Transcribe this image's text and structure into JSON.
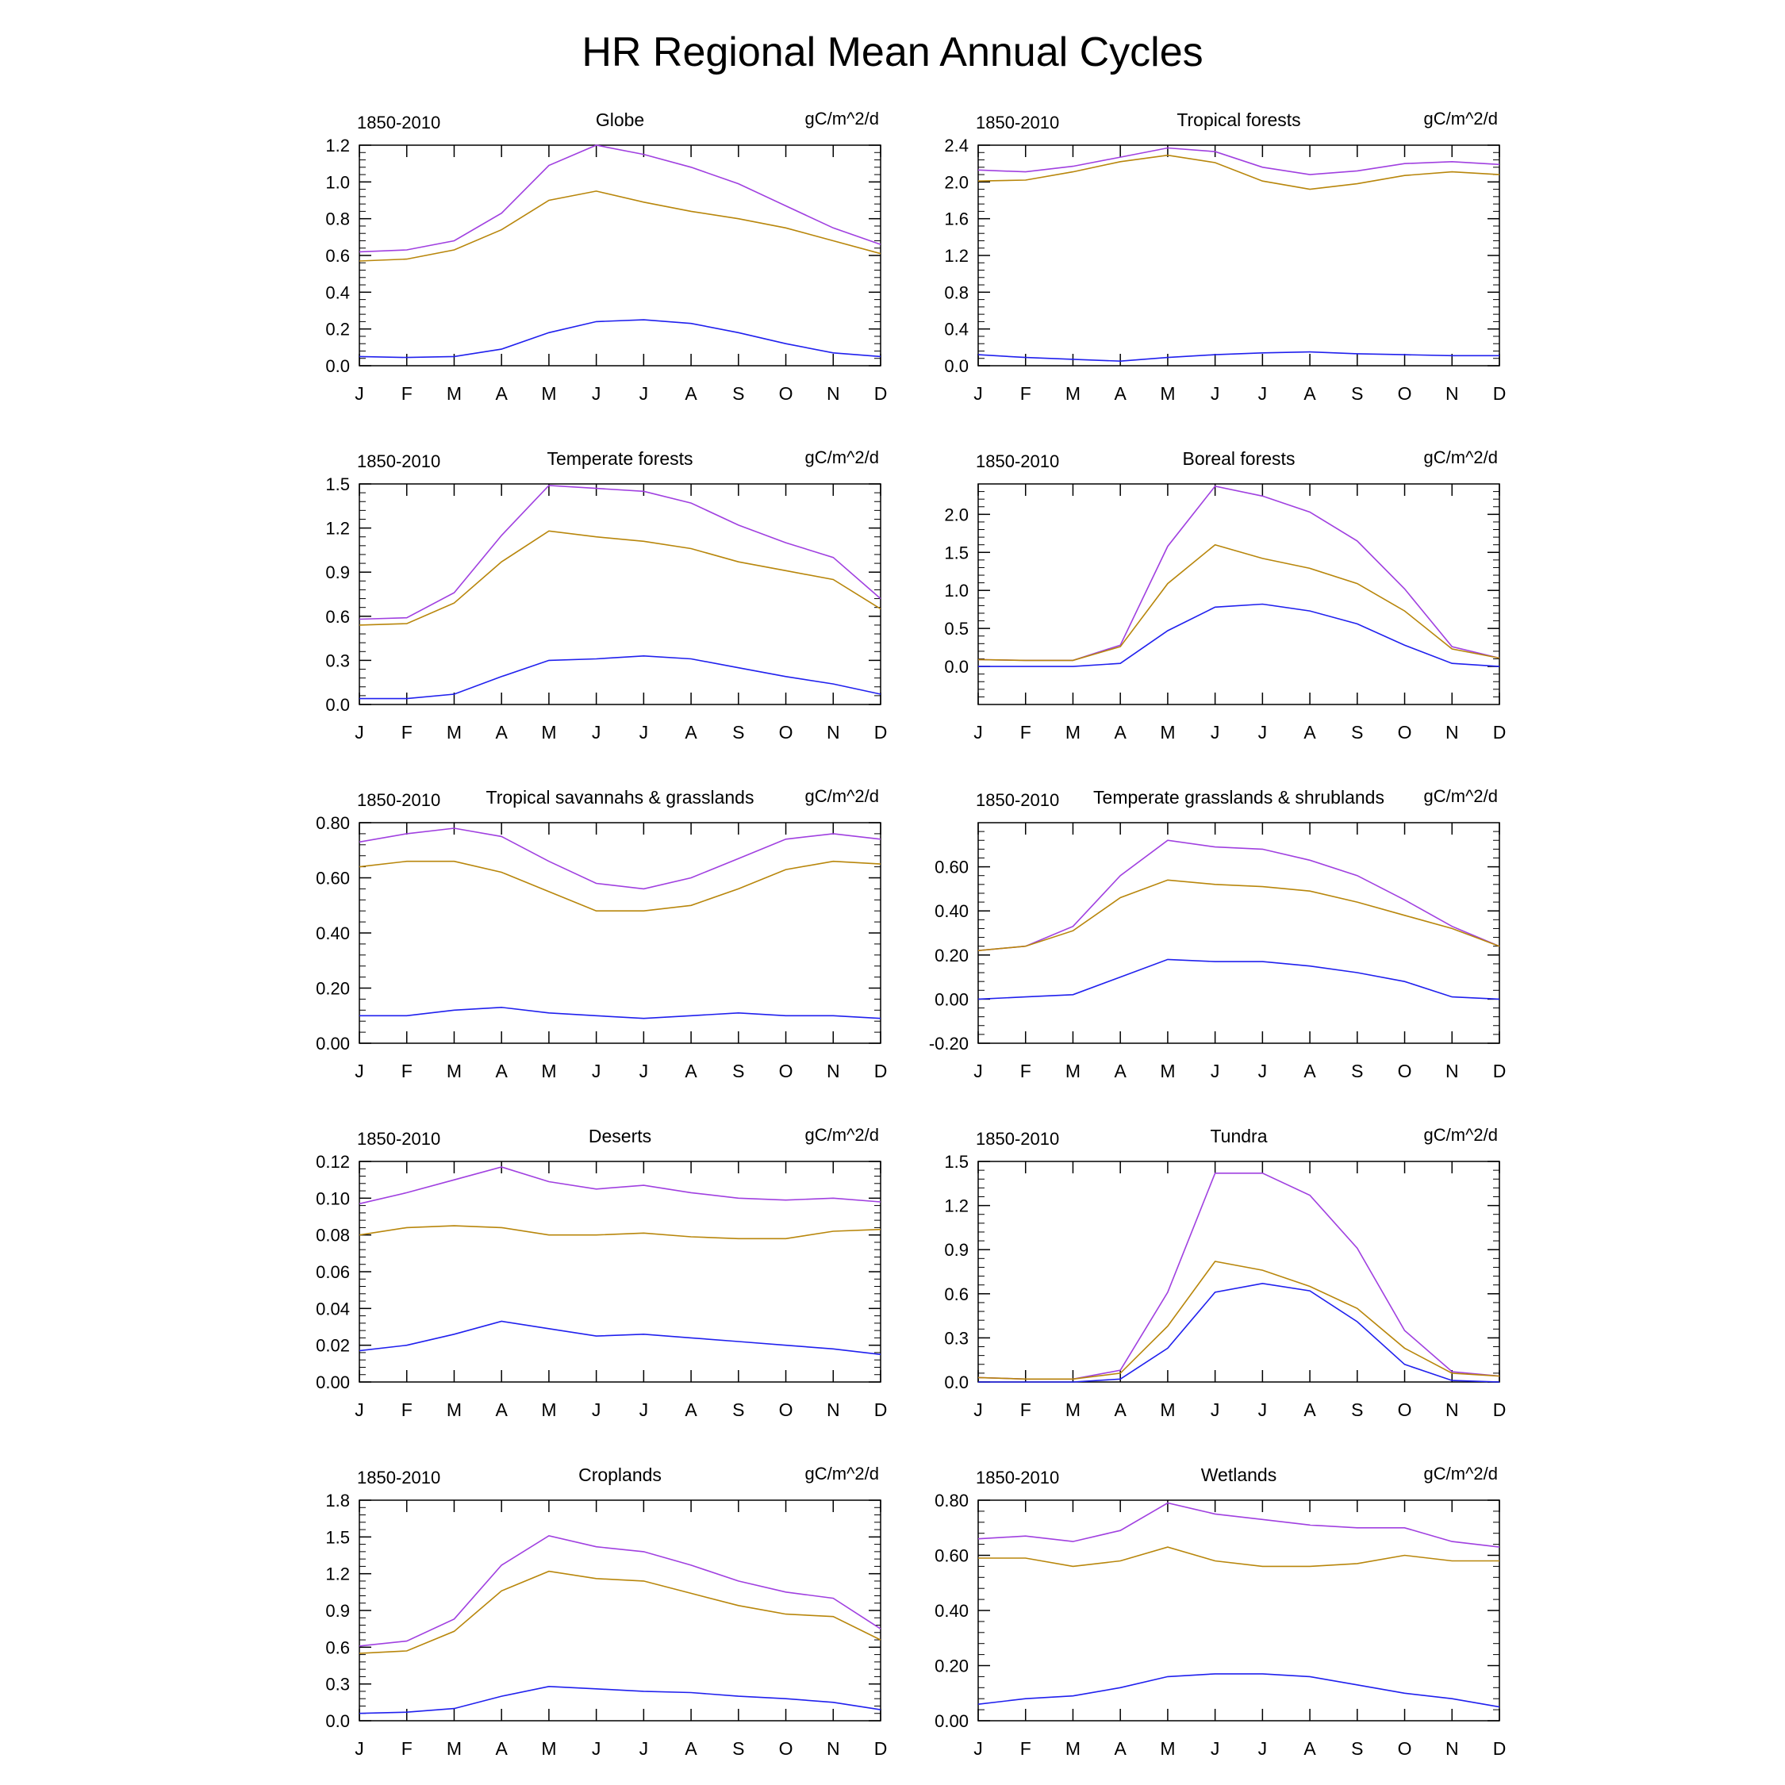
{
  "figure": {
    "title": "HR Regional Mean Annual Cycles",
    "period_label": "1850-2010",
    "units_label": "gC/m^2/d"
  },
  "colors": {
    "series_purple": "#a040e0",
    "series_gold": "#b8860b",
    "series_blue": "#2020ee"
  },
  "chart_data": [
    {
      "type": "line",
      "title": "Globe",
      "categories": [
        "J",
        "F",
        "M",
        "A",
        "M",
        "J",
        "J",
        "A",
        "S",
        "O",
        "N",
        "D"
      ],
      "ylim": [
        0.0,
        1.2
      ],
      "yticks": [
        "0.0",
        "0.2",
        "0.4",
        "0.6",
        "0.8",
        "1.0",
        "1.2"
      ],
      "ytick_values": [
        0.0,
        0.2,
        0.4,
        0.6,
        0.8,
        1.0,
        1.2
      ],
      "minor_step": 0.04,
      "series": [
        {
          "color": "series_purple",
          "values": [
            0.62,
            0.63,
            0.68,
            0.83,
            1.09,
            1.2,
            1.15,
            1.08,
            0.99,
            0.87,
            0.75,
            0.66
          ]
        },
        {
          "color": "series_gold",
          "values": [
            0.57,
            0.58,
            0.63,
            0.74,
            0.9,
            0.95,
            0.89,
            0.84,
            0.8,
            0.75,
            0.68,
            0.61
          ]
        },
        {
          "color": "series_blue",
          "values": [
            0.05,
            0.045,
            0.05,
            0.09,
            0.18,
            0.24,
            0.25,
            0.23,
            0.18,
            0.12,
            0.07,
            0.05
          ]
        }
      ]
    },
    {
      "type": "line",
      "title": "Tropical forests",
      "categories": [
        "J",
        "F",
        "M",
        "A",
        "M",
        "J",
        "J",
        "A",
        "S",
        "O",
        "N",
        "D"
      ],
      "ylim": [
        0.0,
        2.4
      ],
      "yticks": [
        "0.0",
        "0.4",
        "0.8",
        "1.2",
        "1.6",
        "2.0",
        "2.4"
      ],
      "ytick_values": [
        0.0,
        0.4,
        0.8,
        1.2,
        1.6,
        2.0,
        2.4
      ],
      "minor_step": 0.08,
      "series": [
        {
          "color": "series_purple",
          "values": [
            2.13,
            2.11,
            2.17,
            2.27,
            2.37,
            2.33,
            2.16,
            2.08,
            2.12,
            2.2,
            2.22,
            2.19
          ]
        },
        {
          "color": "series_gold",
          "values": [
            2.01,
            2.02,
            2.11,
            2.22,
            2.29,
            2.21,
            2.01,
            1.92,
            1.98,
            2.07,
            2.11,
            2.08
          ]
        },
        {
          "color": "series_blue",
          "values": [
            0.12,
            0.09,
            0.07,
            0.05,
            0.09,
            0.12,
            0.14,
            0.15,
            0.13,
            0.12,
            0.11,
            0.11
          ]
        }
      ]
    },
    {
      "type": "line",
      "title": "Temperate forests",
      "categories": [
        "J",
        "F",
        "M",
        "A",
        "M",
        "J",
        "J",
        "A",
        "S",
        "O",
        "N",
        "D"
      ],
      "ylim": [
        0.0,
        1.5
      ],
      "yticks": [
        "0.0",
        "0.3",
        "0.6",
        "0.9",
        "1.2",
        "1.5"
      ],
      "ytick_values": [
        0.0,
        0.3,
        0.6,
        0.9,
        1.2,
        1.5
      ],
      "minor_step": 0.06,
      "series": [
        {
          "color": "series_purple",
          "values": [
            0.58,
            0.59,
            0.76,
            1.15,
            1.49,
            1.47,
            1.45,
            1.37,
            1.22,
            1.1,
            1.0,
            0.72
          ]
        },
        {
          "color": "series_gold",
          "values": [
            0.54,
            0.55,
            0.69,
            0.97,
            1.18,
            1.14,
            1.11,
            1.06,
            0.97,
            0.91,
            0.85,
            0.65
          ]
        },
        {
          "color": "series_blue",
          "values": [
            0.04,
            0.04,
            0.07,
            0.19,
            0.3,
            0.31,
            0.33,
            0.31,
            0.25,
            0.19,
            0.14,
            0.07
          ]
        }
      ]
    },
    {
      "type": "line",
      "title": "Boreal forests",
      "categories": [
        "J",
        "F",
        "M",
        "A",
        "M",
        "J",
        "J",
        "A",
        "S",
        "O",
        "N",
        "D"
      ],
      "ylim": [
        -0.5,
        2.4
      ],
      "yticks": [
        "0.0",
        "0.5",
        "1.0",
        "1.5",
        "2.0"
      ],
      "ytick_values": [
        0.0,
        0.5,
        1.0,
        1.5,
        2.0
      ],
      "minor_step": 0.1,
      "series": [
        {
          "color": "series_purple",
          "values": [
            0.09,
            0.08,
            0.08,
            0.28,
            1.58,
            2.37,
            2.24,
            2.03,
            1.65,
            1.02,
            0.26,
            0.11
          ]
        },
        {
          "color": "series_gold",
          "values": [
            0.09,
            0.08,
            0.08,
            0.26,
            1.09,
            1.6,
            1.42,
            1.29,
            1.09,
            0.73,
            0.23,
            0.11
          ]
        },
        {
          "color": "series_blue",
          "values": [
            0.0,
            0.0,
            0.0,
            0.04,
            0.47,
            0.78,
            0.82,
            0.73,
            0.56,
            0.28,
            0.04,
            0.0
          ]
        }
      ]
    },
    {
      "type": "line",
      "title": "Tropical savannahs & grasslands",
      "categories": [
        "J",
        "F",
        "M",
        "A",
        "M",
        "J",
        "J",
        "A",
        "S",
        "O",
        "N",
        "D"
      ],
      "ylim": [
        0.0,
        0.8
      ],
      "yticks": [
        "0.00",
        "0.20",
        "0.40",
        "0.60",
        "0.80"
      ],
      "ytick_values": [
        0.0,
        0.2,
        0.4,
        0.6,
        0.8
      ],
      "minor_step": 0.04,
      "series": [
        {
          "color": "series_purple",
          "values": [
            0.73,
            0.76,
            0.78,
            0.75,
            0.66,
            0.58,
            0.56,
            0.6,
            0.67,
            0.74,
            0.76,
            0.74
          ]
        },
        {
          "color": "series_gold",
          "values": [
            0.64,
            0.66,
            0.66,
            0.62,
            0.55,
            0.48,
            0.48,
            0.5,
            0.56,
            0.63,
            0.66,
            0.65
          ]
        },
        {
          "color": "series_blue",
          "values": [
            0.1,
            0.1,
            0.12,
            0.13,
            0.11,
            0.1,
            0.09,
            0.1,
            0.11,
            0.1,
            0.1,
            0.09
          ]
        }
      ]
    },
    {
      "type": "line",
      "title": "Temperate grasslands & shrublands",
      "categories": [
        "J",
        "F",
        "M",
        "A",
        "M",
        "J",
        "J",
        "A",
        "S",
        "O",
        "N",
        "D"
      ],
      "ylim": [
        -0.2,
        0.8
      ],
      "yticks": [
        "-0.20",
        "0.00",
        "0.20",
        "0.40",
        "0.60"
      ],
      "ytick_values": [
        -0.2,
        0.0,
        0.2,
        0.4,
        0.6
      ],
      "minor_step": 0.04,
      "series": [
        {
          "color": "series_purple",
          "values": [
            0.22,
            0.24,
            0.33,
            0.56,
            0.72,
            0.69,
            0.68,
            0.63,
            0.56,
            0.45,
            0.33,
            0.24
          ]
        },
        {
          "color": "series_gold",
          "values": [
            0.22,
            0.24,
            0.31,
            0.46,
            0.54,
            0.52,
            0.51,
            0.49,
            0.44,
            0.38,
            0.32,
            0.24
          ]
        },
        {
          "color": "series_blue",
          "values": [
            0.0,
            0.01,
            0.02,
            0.1,
            0.18,
            0.17,
            0.17,
            0.15,
            0.12,
            0.08,
            0.01,
            0.0
          ]
        }
      ]
    },
    {
      "type": "line",
      "title": "Deserts",
      "categories": [
        "J",
        "F",
        "M",
        "A",
        "M",
        "J",
        "J",
        "A",
        "S",
        "O",
        "N",
        "D"
      ],
      "ylim": [
        0.0,
        0.12
      ],
      "yticks": [
        "0.00",
        "0.02",
        "0.04",
        "0.06",
        "0.08",
        "0.10",
        "0.12"
      ],
      "ytick_values": [
        0.0,
        0.02,
        0.04,
        0.06,
        0.08,
        0.1,
        0.12
      ],
      "minor_step": 0.004,
      "series": [
        {
          "color": "series_purple",
          "values": [
            0.097,
            0.103,
            0.11,
            0.117,
            0.109,
            0.105,
            0.107,
            0.103,
            0.1,
            0.099,
            0.1,
            0.098
          ]
        },
        {
          "color": "series_gold",
          "values": [
            0.08,
            0.084,
            0.085,
            0.084,
            0.08,
            0.08,
            0.081,
            0.079,
            0.078,
            0.078,
            0.082,
            0.083
          ]
        },
        {
          "color": "series_blue",
          "values": [
            0.017,
            0.02,
            0.026,
            0.033,
            0.029,
            0.025,
            0.026,
            0.024,
            0.022,
            0.02,
            0.018,
            0.015
          ]
        }
      ]
    },
    {
      "type": "line",
      "title": "Tundra",
      "categories": [
        "J",
        "F",
        "M",
        "A",
        "M",
        "J",
        "J",
        "A",
        "S",
        "O",
        "N",
        "D"
      ],
      "ylim": [
        0.0,
        1.5
      ],
      "yticks": [
        "0.0",
        "0.3",
        "0.6",
        "0.9",
        "1.2",
        "1.5"
      ],
      "ytick_values": [
        0.0,
        0.3,
        0.6,
        0.9,
        1.2,
        1.5
      ],
      "minor_step": 0.06,
      "series": [
        {
          "color": "series_purple",
          "values": [
            0.03,
            0.02,
            0.02,
            0.08,
            0.61,
            1.42,
            1.42,
            1.27,
            0.91,
            0.35,
            0.07,
            0.04
          ]
        },
        {
          "color": "series_gold",
          "values": [
            0.03,
            0.02,
            0.02,
            0.06,
            0.38,
            0.82,
            0.76,
            0.65,
            0.5,
            0.23,
            0.06,
            0.04
          ]
        },
        {
          "color": "series_blue",
          "values": [
            0.0,
            0.0,
            0.0,
            0.02,
            0.23,
            0.61,
            0.67,
            0.62,
            0.41,
            0.12,
            0.01,
            0.0
          ]
        }
      ]
    },
    {
      "type": "line",
      "title": "Croplands",
      "categories": [
        "J",
        "F",
        "M",
        "A",
        "M",
        "J",
        "J",
        "A",
        "S",
        "O",
        "N",
        "D"
      ],
      "ylim": [
        0.0,
        1.8
      ],
      "yticks": [
        "0.0",
        "0.3",
        "0.6",
        "0.9",
        "1.2",
        "1.5",
        "1.8"
      ],
      "ytick_values": [
        0.0,
        0.3,
        0.6,
        0.9,
        1.2,
        1.5,
        1.8
      ],
      "minor_step": 0.06,
      "series": [
        {
          "color": "series_purple",
          "values": [
            0.61,
            0.65,
            0.83,
            1.27,
            1.51,
            1.42,
            1.38,
            1.27,
            1.14,
            1.05,
            1.0,
            0.75
          ]
        },
        {
          "color": "series_gold",
          "values": [
            0.55,
            0.57,
            0.73,
            1.06,
            1.22,
            1.16,
            1.14,
            1.04,
            0.94,
            0.87,
            0.85,
            0.66
          ]
        },
        {
          "color": "series_blue",
          "values": [
            0.06,
            0.07,
            0.1,
            0.2,
            0.28,
            0.26,
            0.24,
            0.23,
            0.2,
            0.18,
            0.15,
            0.09
          ]
        }
      ]
    },
    {
      "type": "line",
      "title": "Wetlands",
      "categories": [
        "J",
        "F",
        "M",
        "A",
        "M",
        "J",
        "J",
        "A",
        "S",
        "O",
        "N",
        "D"
      ],
      "ylim": [
        0.0,
        0.8
      ],
      "yticks": [
        "0.00",
        "0.20",
        "0.40",
        "0.60",
        "0.80"
      ],
      "ytick_values": [
        0.0,
        0.2,
        0.4,
        0.6,
        0.8
      ],
      "minor_step": 0.04,
      "series": [
        {
          "color": "series_purple",
          "values": [
            0.66,
            0.67,
            0.65,
            0.69,
            0.79,
            0.75,
            0.73,
            0.71,
            0.7,
            0.7,
            0.65,
            0.63
          ]
        },
        {
          "color": "series_gold",
          "values": [
            0.59,
            0.59,
            0.56,
            0.58,
            0.63,
            0.58,
            0.56,
            0.56,
            0.57,
            0.6,
            0.58,
            0.58
          ]
        },
        {
          "color": "series_blue",
          "values": [
            0.06,
            0.08,
            0.09,
            0.12,
            0.16,
            0.17,
            0.17,
            0.16,
            0.13,
            0.1,
            0.08,
            0.05
          ]
        }
      ]
    }
  ]
}
